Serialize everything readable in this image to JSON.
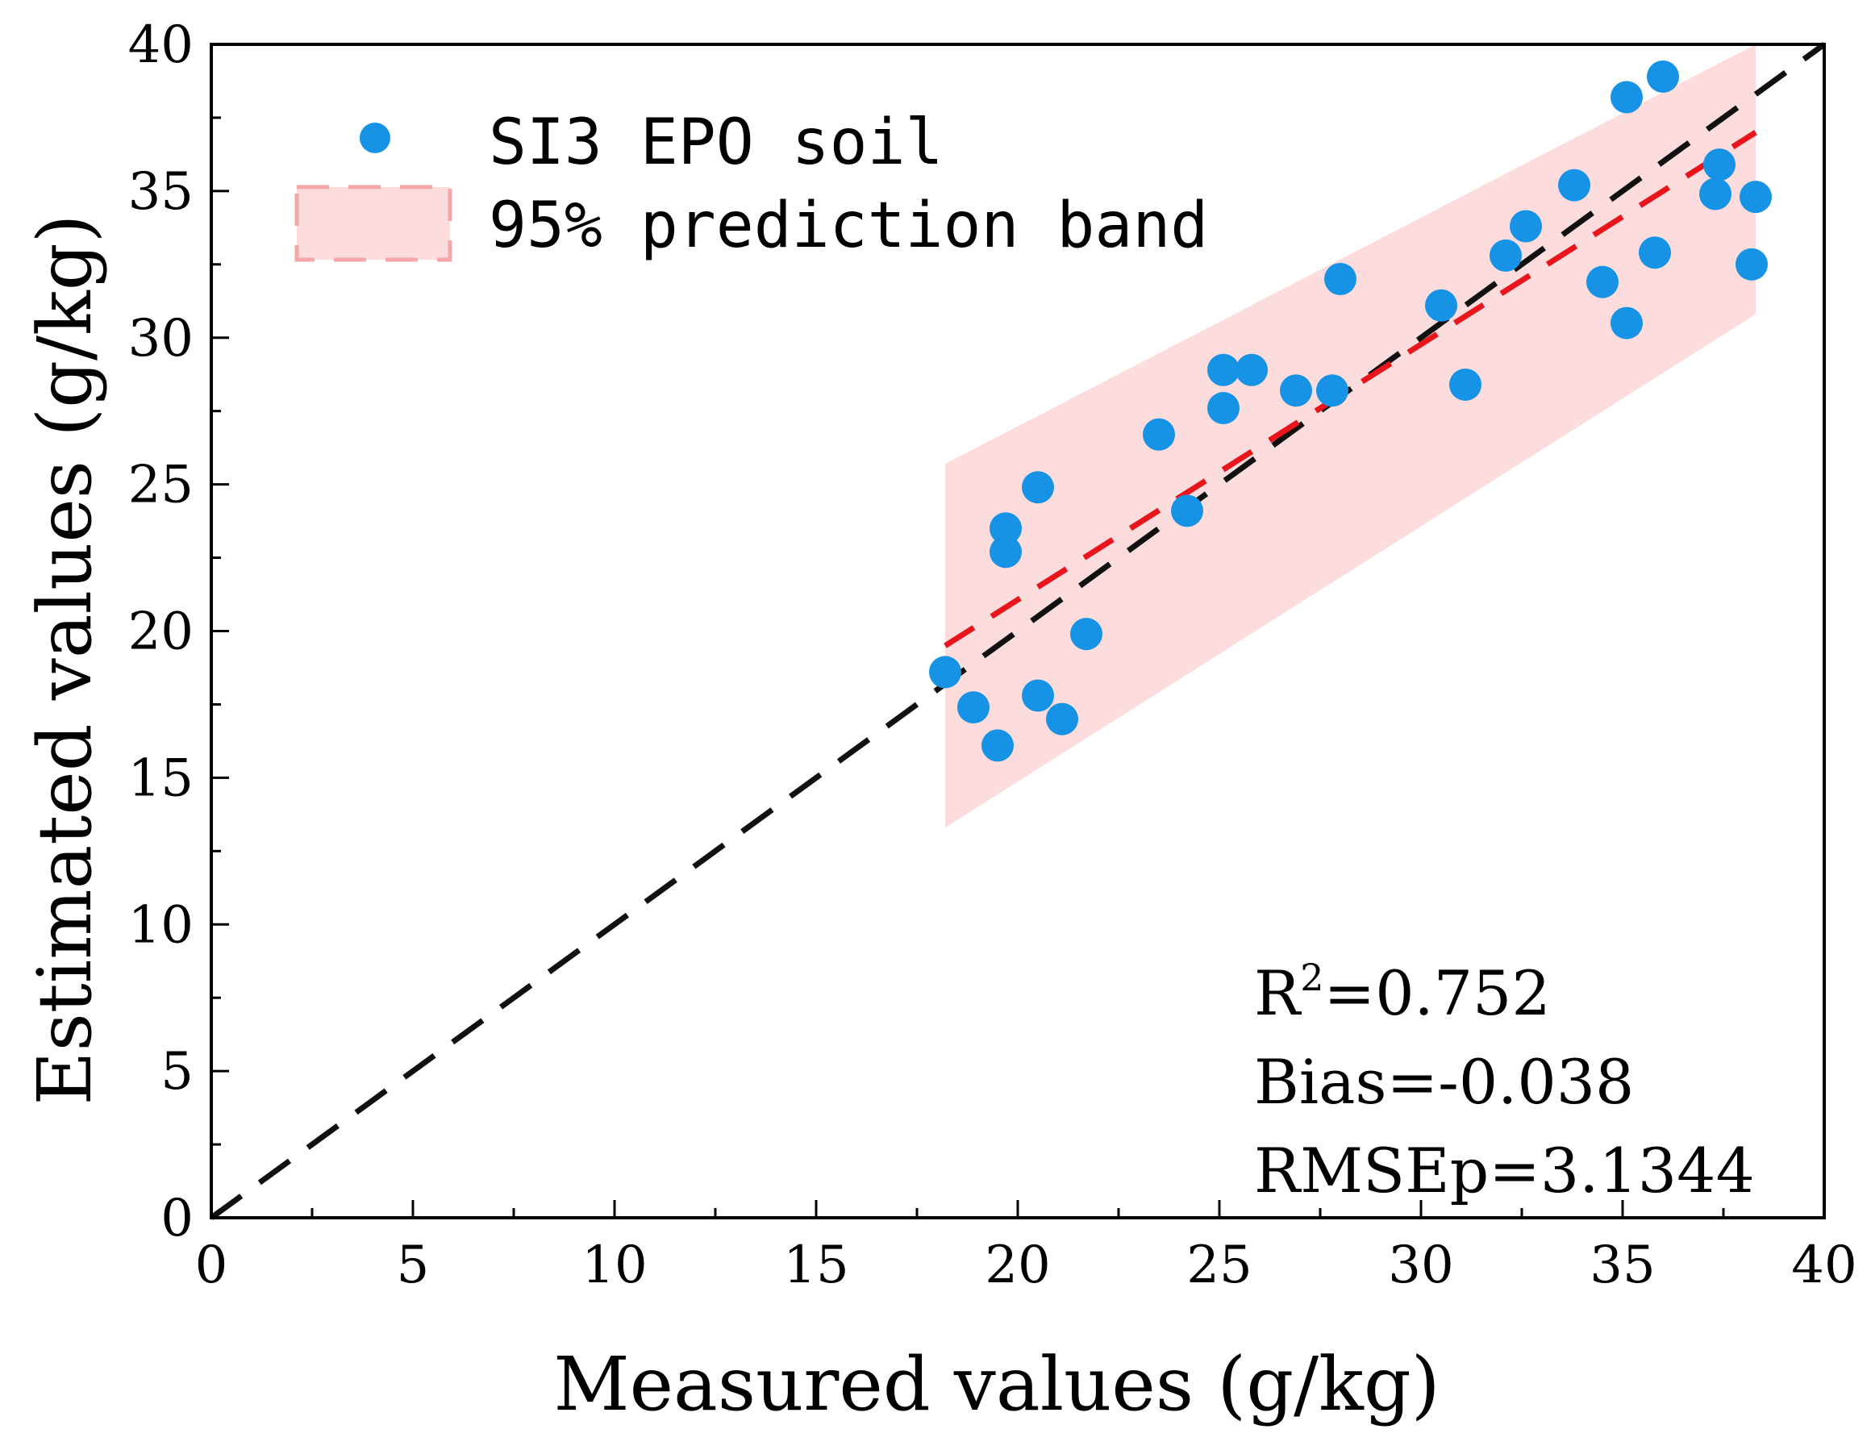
{
  "chart_data": {
    "type": "scatter",
    "xlabel": "Measured values (g/kg)",
    "ylabel": "Estimated values (g/kg)",
    "xlim": [
      0,
      40
    ],
    "ylim": [
      0,
      40
    ],
    "x_ticks": [
      0,
      5,
      10,
      15,
      20,
      25,
      30,
      35,
      40
    ],
    "y_ticks": [
      0,
      5,
      10,
      15,
      20,
      25,
      30,
      35,
      40
    ],
    "grid": false,
    "legend_position": "top-left",
    "colors": {
      "points": "#1793e6",
      "band": "#fcdcdc",
      "fit_line": "#e8161c",
      "identity_line": "#111111"
    },
    "series": [
      {
        "name": "SI3 EPO soil",
        "x": [
          18.2,
          18.9,
          19.5,
          19.7,
          19.7,
          20.5,
          20.5,
          21.1,
          21.7,
          23.5,
          24.2,
          25.1,
          25.1,
          25.8,
          26.9,
          27.8,
          28.0,
          30.5,
          31.1,
          32.1,
          32.6,
          33.8,
          34.5,
          35.1,
          35.1,
          35.8,
          36.0,
          37.3,
          37.4,
          38.3,
          38.2
        ],
        "y": [
          18.6,
          17.4,
          16.1,
          22.7,
          23.5,
          24.9,
          17.8,
          17.0,
          19.9,
          26.7,
          24.1,
          27.6,
          28.9,
          28.9,
          28.2,
          28.2,
          32.0,
          31.1,
          28.4,
          32.8,
          33.8,
          35.2,
          31.9,
          38.2,
          30.5,
          32.9,
          38.9,
          34.9,
          35.9,
          34.8,
          32.5
        ]
      },
      {
        "name": "95% prediction band",
        "x": [
          18.2,
          38.3
        ],
        "lower": [
          13.3,
          30.8
        ],
        "upper": [
          25.7,
          40.0
        ]
      },
      {
        "name": "fit line",
        "x": [
          18.2,
          38.3
        ],
        "y": [
          19.5,
          37.0
        ]
      },
      {
        "name": "1:1 line",
        "x": [
          0,
          40
        ],
        "y": [
          0,
          40
        ]
      }
    ],
    "legend": [
      "SI3 EPO soil",
      "95% prediction band"
    ],
    "annotations": {
      "r2_prefix": "R",
      "r2_sup": "2",
      "r2_value": "=0.752",
      "bias": "Bias=-0.038",
      "rmsep": "RMSEp=3.1344"
    }
  }
}
